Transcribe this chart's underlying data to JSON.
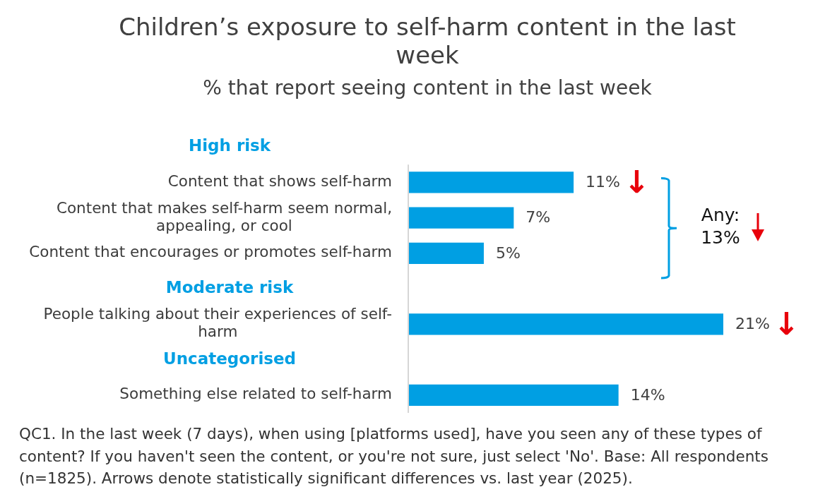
{
  "chart_data": {
    "type": "bar",
    "orientation": "horizontal",
    "title": "Children’s exposure to self-harm content in the last week",
    "subtitle": "% that report seeing content in the last week",
    "categories": [
      null,
      "Content that shows self-harm",
      "Content that makes self-harm seem normal, appealing, or cool",
      "Content that encourages or promotes self-harm",
      null,
      "People talking about their experiences of self-harm",
      null,
      "Something else related to self-harm"
    ],
    "values": [
      null,
      11,
      7,
      5,
      null,
      21,
      null,
      14
    ],
    "value_labels": [
      null,
      "11%",
      "7%",
      "5%",
      null,
      "21%",
      null,
      "14%"
    ],
    "color": "#009fe3",
    "annotations": [
      "High risk",
      "Moderate risk",
      "Uncategorised",
      {
        "text": "↓",
        "x": 11,
        "y": "Content that shows self-harm"
      },
      {
        "text": "↓",
        "x": 21,
        "y": "People talking about their experiences of self-harm"
      },
      "Any: 13%",
      "QC1. In the last week (7 days), when using [platforms used], have you seen any of these types of content? If you haven't seen the content, or you're not sure, just select 'No'. Base: All respondents (n=1825). Arrows denote statistically significant differences vs. last year (2025)."
    ]
  }
}
